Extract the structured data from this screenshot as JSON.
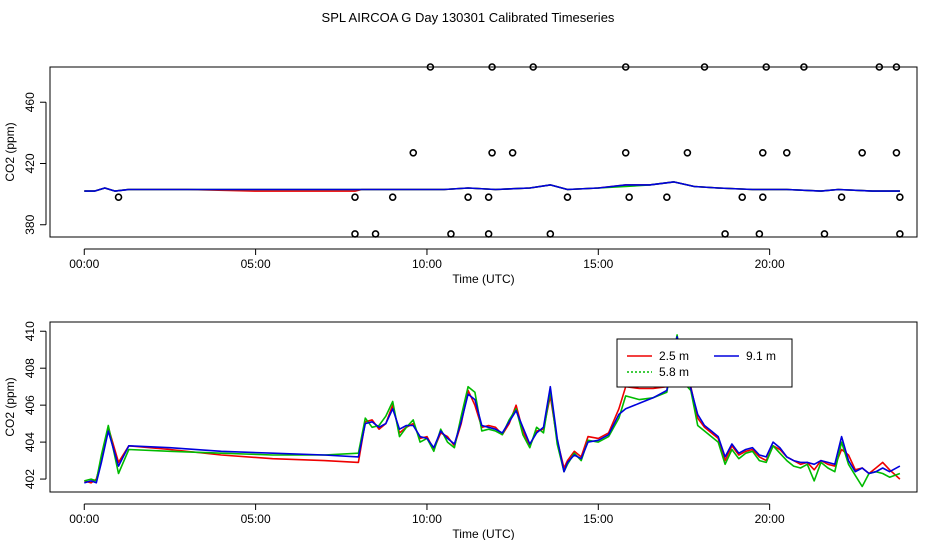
{
  "figure_title": "SPL AIRCOA G  Day 130301  Calibrated Timeseries",
  "colors": {
    "s25": "#ee0000",
    "s58": "#00bb00",
    "s91": "#0000dd",
    "axis": "#000000"
  },
  "chart_data": [
    {
      "type": "line+scatter",
      "title": "",
      "xlabel": "Time (UTC)",
      "ylabel": "CO2 (ppm)",
      "xlim": [
        -1.0,
        24.3
      ],
      "ylim": [
        372,
        483
      ],
      "xticks": [
        {
          "v": 0,
          "label": "00:00"
        },
        {
          "v": 5,
          "label": "05:00"
        },
        {
          "v": 10,
          "label": "10:00"
        },
        {
          "v": 15,
          "label": "15:00"
        },
        {
          "v": 20,
          "label": "20:00"
        }
      ],
      "yticks": [
        {
          "v": 380,
          "label": "380"
        },
        {
          "v": 420,
          "label": "420"
        },
        {
          "v": 460,
          "label": "460"
        }
      ],
      "grid": false,
      "series": [
        {
          "key": "s25",
          "x": [
            0.0,
            0.3,
            0.6,
            0.9,
            1.3,
            3.0,
            5.0,
            7.9,
            8.1,
            9.5,
            10.5,
            11.2,
            12.0,
            13.0,
            13.6,
            14.1,
            15.0,
            15.8,
            16.5,
            17.2,
            17.8,
            18.5,
            19.5,
            20.5,
            21.5,
            22.0,
            23.0,
            23.8
          ],
          "y": [
            402,
            402,
            404,
            402,
            403,
            403,
            402,
            402,
            403,
            403,
            403,
            404,
            403,
            404,
            406,
            403,
            404,
            406,
            406,
            408,
            405,
            404,
            403,
            403,
            402,
            403,
            402,
            402
          ]
        },
        {
          "key": "s58",
          "x": [
            0.0,
            0.3,
            0.6,
            0.9,
            1.3,
            3.0,
            5.0,
            7.9,
            8.1,
            9.5,
            10.5,
            11.2,
            12.0,
            13.0,
            13.6,
            14.1,
            15.0,
            15.8,
            16.5,
            17.2,
            17.8,
            18.5,
            19.5,
            20.5,
            21.5,
            22.0,
            23.0,
            23.8
          ],
          "y": [
            402,
            402,
            404,
            402,
            403,
            403,
            403,
            403,
            403,
            403,
            403,
            404,
            403,
            404,
            406,
            403,
            404,
            405,
            406,
            408,
            405,
            404,
            403,
            403,
            402,
            403,
            402,
            402
          ]
        },
        {
          "key": "s91",
          "x": [
            0.0,
            0.3,
            0.6,
            0.9,
            1.3,
            3.0,
            5.0,
            7.9,
            8.1,
            9.5,
            10.5,
            11.2,
            12.0,
            13.0,
            13.6,
            14.1,
            15.0,
            15.8,
            16.5,
            17.2,
            17.8,
            18.5,
            19.5,
            20.5,
            21.5,
            22.0,
            23.0,
            23.8
          ],
          "y": [
            402,
            402,
            404,
            402,
            403,
            403,
            403,
            403,
            403,
            403,
            403,
            404,
            403,
            404,
            406,
            403,
            404,
            406,
            406,
            408,
            405,
            404,
            403,
            403,
            402,
            403,
            402,
            402
          ]
        }
      ],
      "points": {
        "x": [
          1.0,
          7.9,
          7.9,
          8.5,
          9.0,
          9.6,
          10.1,
          10.7,
          11.2,
          11.8,
          11.8,
          11.9,
          11.9,
          12.5,
          13.1,
          13.6,
          14.1,
          15.8,
          15.8,
          15.9,
          17.0,
          17.6,
          18.1,
          18.7,
          19.2,
          19.7,
          19.8,
          19.8,
          19.9,
          20.5,
          21.0,
          21.6,
          22.1,
          22.7,
          23.2,
          23.7,
          23.7,
          23.8,
          23.8
        ],
        "y": [
          398,
          398,
          374,
          374,
          398,
          427,
          483,
          374,
          398,
          398,
          374,
          427,
          483,
          427,
          483,
          374,
          398,
          483,
          427,
          398,
          398,
          427,
          483,
          374,
          398,
          374,
          398,
          427,
          483,
          427,
          483,
          374,
          398,
          427,
          483,
          483,
          427,
          398,
          374
        ]
      }
    },
    {
      "type": "line",
      "title": "",
      "xlabel": "Time (UTC)",
      "ylabel": "CO2 (ppm)",
      "xlim": [
        -1.0,
        24.3
      ],
      "ylim": [
        401.3,
        410.5
      ],
      "xticks": [
        {
          "v": 0,
          "label": "00:00"
        },
        {
          "v": 5,
          "label": "05:00"
        },
        {
          "v": 10,
          "label": "10:00"
        },
        {
          "v": 15,
          "label": "15:00"
        },
        {
          "v": 20,
          "label": "20:00"
        }
      ],
      "yticks": [
        {
          "v": 402,
          "label": "402"
        },
        {
          "v": 404,
          "label": "404"
        },
        {
          "v": 406,
          "label": "406"
        },
        {
          "v": 408,
          "label": "408"
        },
        {
          "v": 410,
          "label": "410"
        }
      ],
      "grid": false,
      "legend": {
        "position": "top-right",
        "entries": [
          {
            "key": "s25",
            "label": "2.5 m"
          },
          {
            "key": "s58",
            "label": "5.8 m"
          },
          {
            "key": "s91",
            "label": "9.1 m"
          }
        ]
      },
      "series": [
        {
          "key": "s25",
          "x": [
            0.0,
            0.2,
            0.35,
            0.5,
            0.7,
            1.0,
            1.3,
            2.5,
            4.0,
            5.5,
            7.0,
            8.0,
            8.2,
            8.4,
            8.6,
            8.8,
            9.0,
            9.2,
            9.4,
            9.6,
            9.8,
            10.0,
            10.2,
            10.4,
            10.6,
            10.8,
            11.0,
            11.2,
            11.4,
            11.6,
            11.8,
            12.0,
            12.2,
            12.4,
            12.6,
            12.8,
            13.0,
            13.2,
            13.4,
            13.6,
            13.8,
            14.0,
            14.1,
            14.3,
            14.5,
            14.7,
            15.0,
            15.3,
            15.6,
            15.8,
            16.2,
            16.6,
            17.0,
            17.3,
            17.5,
            17.7,
            17.9,
            18.1,
            18.3,
            18.5,
            18.7,
            18.9,
            19.1,
            19.3,
            19.5,
            19.7,
            19.9,
            20.1,
            20.3,
            20.5,
            20.7,
            20.9,
            21.1,
            21.3,
            21.5,
            21.7,
            21.9,
            22.1,
            22.3,
            22.5,
            22.7,
            22.9,
            23.1,
            23.3,
            23.5,
            23.8
          ],
          "y": [
            401.9,
            401.8,
            402.0,
            403.0,
            404.8,
            402.9,
            403.8,
            403.6,
            403.3,
            403.1,
            403.0,
            402.9,
            405.1,
            405.2,
            404.7,
            405.0,
            406.0,
            404.5,
            404.8,
            405.0,
            404.2,
            404.3,
            403.6,
            404.5,
            404.3,
            403.8,
            405.0,
            406.8,
            406.0,
            404.8,
            404.9,
            404.8,
            404.4,
            405.0,
            406.0,
            404.6,
            403.8,
            404.6,
            404.7,
            406.5,
            404.1,
            402.6,
            403.0,
            403.5,
            403.2,
            404.3,
            404.2,
            404.5,
            405.8,
            407.0,
            406.9,
            406.9,
            407.0,
            409.5,
            407.8,
            407.0,
            405.3,
            404.8,
            404.5,
            404.2,
            403.0,
            403.8,
            403.3,
            403.5,
            403.6,
            403.2,
            403.0,
            403.8,
            403.6,
            403.2,
            403.0,
            402.8,
            402.9,
            402.5,
            403.0,
            402.8,
            402.7,
            403.6,
            403.3,
            402.5,
            402.6,
            402.3,
            402.6,
            402.9,
            402.5,
            402.0
          ]
        },
        {
          "key": "s58",
          "x": [
            0.0,
            0.2,
            0.35,
            0.5,
            0.7,
            1.0,
            1.3,
            2.5,
            4.0,
            5.5,
            7.0,
            8.0,
            8.2,
            8.4,
            8.6,
            8.8,
            9.0,
            9.2,
            9.4,
            9.6,
            9.8,
            10.0,
            10.2,
            10.4,
            10.6,
            10.8,
            11.0,
            11.2,
            11.4,
            11.6,
            11.8,
            12.0,
            12.2,
            12.4,
            12.6,
            12.8,
            13.0,
            13.2,
            13.4,
            13.6,
            13.8,
            14.0,
            14.1,
            14.3,
            14.5,
            14.7,
            15.0,
            15.3,
            15.6,
            15.8,
            16.2,
            16.6,
            17.0,
            17.3,
            17.5,
            17.7,
            17.9,
            18.1,
            18.3,
            18.5,
            18.7,
            18.9,
            19.1,
            19.3,
            19.5,
            19.7,
            19.9,
            20.1,
            20.3,
            20.5,
            20.7,
            20.9,
            21.1,
            21.3,
            21.5,
            21.7,
            21.9,
            22.1,
            22.3,
            22.5,
            22.7,
            22.9,
            23.1,
            23.3,
            23.5,
            23.8
          ],
          "y": [
            401.9,
            402.0,
            401.9,
            403.3,
            404.9,
            402.3,
            403.6,
            403.5,
            403.4,
            403.3,
            403.3,
            403.4,
            405.3,
            404.8,
            404.9,
            405.4,
            406.2,
            404.3,
            404.8,
            405.2,
            404.0,
            404.2,
            403.5,
            404.7,
            404.0,
            403.7,
            405.4,
            407.0,
            406.7,
            404.6,
            404.7,
            404.6,
            404.4,
            405.2,
            405.8,
            404.4,
            403.7,
            404.8,
            404.5,
            406.8,
            403.9,
            402.4,
            402.8,
            403.4,
            403.0,
            404.1,
            404.0,
            404.3,
            405.3,
            406.5,
            406.3,
            406.4,
            406.7,
            409.8,
            407.2,
            406.8,
            404.9,
            404.6,
            404.3,
            404.0,
            402.8,
            403.6,
            403.1,
            403.4,
            403.5,
            403.0,
            402.9,
            403.8,
            403.4,
            403.0,
            402.7,
            402.6,
            402.8,
            401.9,
            402.9,
            402.6,
            402.4,
            404.0,
            402.8,
            402.2,
            401.6,
            402.3,
            402.4,
            402.3,
            402.1,
            402.3
          ]
        },
        {
          "key": "s91",
          "x": [
            0.0,
            0.2,
            0.35,
            0.5,
            0.7,
            1.0,
            1.3,
            2.5,
            4.0,
            5.5,
            7.0,
            8.0,
            8.2,
            8.4,
            8.6,
            8.8,
            9.0,
            9.2,
            9.4,
            9.6,
            9.8,
            10.0,
            10.2,
            10.4,
            10.6,
            10.8,
            11.0,
            11.2,
            11.4,
            11.6,
            11.8,
            12.0,
            12.2,
            12.4,
            12.6,
            12.8,
            13.0,
            13.2,
            13.4,
            13.6,
            13.8,
            14.0,
            14.1,
            14.3,
            14.5,
            14.7,
            15.0,
            15.3,
            15.6,
            15.8,
            16.2,
            16.6,
            17.0,
            17.3,
            17.5,
            17.7,
            17.9,
            18.1,
            18.3,
            18.5,
            18.7,
            18.9,
            19.1,
            19.3,
            19.5,
            19.7,
            19.9,
            20.1,
            20.3,
            20.5,
            20.7,
            20.9,
            21.1,
            21.3,
            21.5,
            21.7,
            21.9,
            22.1,
            22.3,
            22.5,
            22.7,
            22.9,
            23.1,
            23.3,
            23.5,
            23.8
          ],
          "y": [
            401.8,
            401.9,
            401.8,
            402.9,
            404.6,
            402.7,
            403.8,
            403.7,
            403.5,
            403.4,
            403.3,
            403.2,
            405.0,
            405.1,
            404.8,
            405.0,
            405.8,
            404.7,
            404.9,
            404.9,
            404.3,
            404.2,
            403.7,
            404.6,
            404.2,
            403.9,
            405.1,
            406.6,
            406.3,
            404.9,
            404.8,
            404.7,
            404.5,
            405.1,
            405.7,
            404.8,
            403.9,
            404.5,
            404.8,
            407.0,
            404.2,
            402.4,
            402.9,
            403.3,
            403.1,
            404.0,
            404.1,
            404.4,
            405.5,
            405.8,
            406.1,
            406.4,
            406.8,
            409.7,
            408.0,
            406.9,
            405.5,
            404.9,
            404.6,
            404.3,
            403.2,
            403.9,
            403.4,
            403.6,
            403.7,
            403.3,
            403.2,
            404.0,
            403.7,
            403.2,
            403.0,
            402.9,
            402.9,
            402.8,
            403.0,
            402.9,
            402.8,
            404.3,
            403.0,
            402.4,
            402.6,
            402.3,
            402.4,
            402.6,
            402.4,
            402.7
          ]
        }
      ]
    }
  ]
}
